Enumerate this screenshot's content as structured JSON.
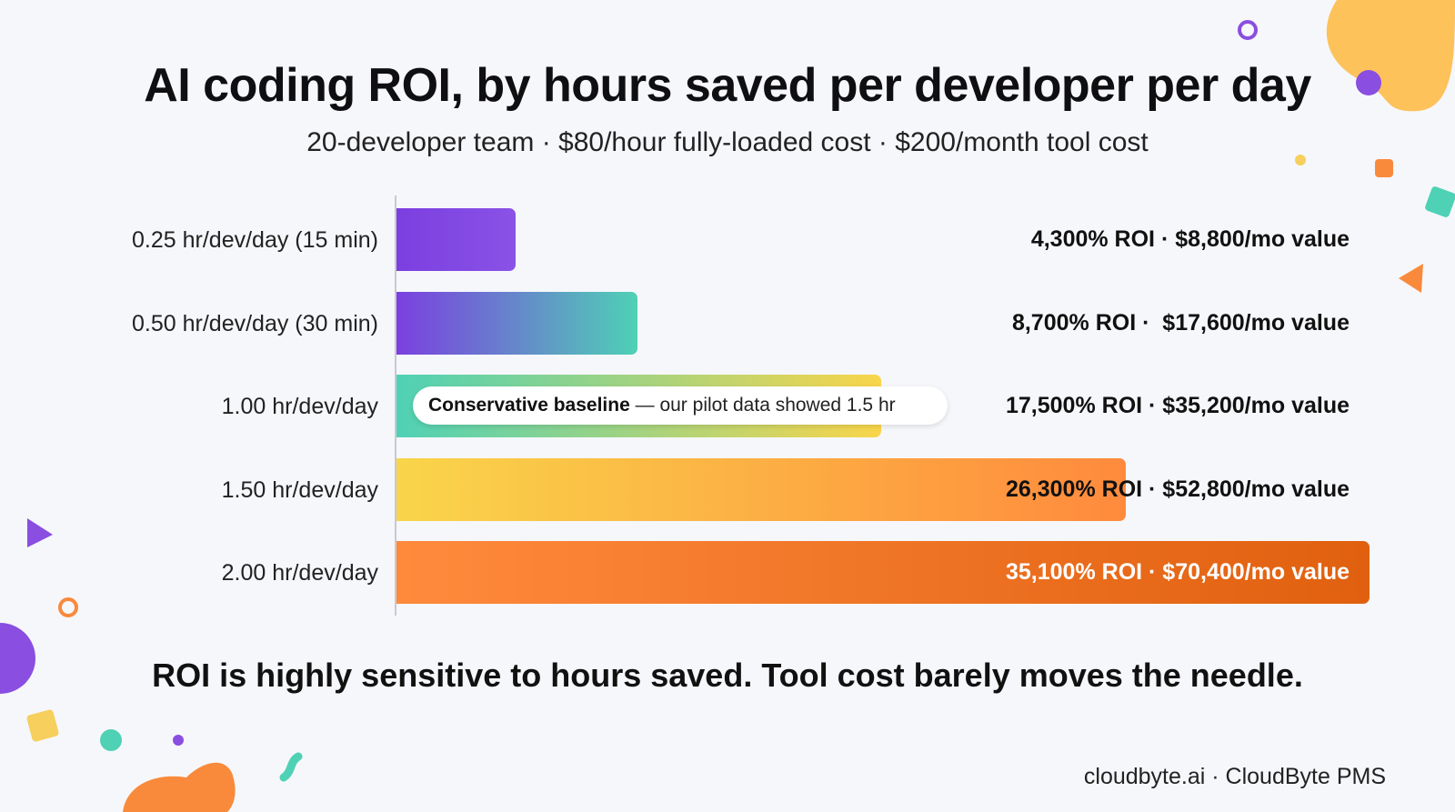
{
  "header": {
    "title": "AI coding ROI, by hours saved per developer per day",
    "subtitle": "20-developer team · $80/hour fully-loaded cost · $200/month tool cost"
  },
  "chart_data": {
    "type": "bar",
    "orientation": "horizontal",
    "title": "AI coding ROI, by hours saved per developer per day",
    "categories": [
      "0.25 hr/dev/day (15 min)",
      "0.50 hr/dev/day (30 min)",
      "1.00 hr/dev/day",
      "1.50 hr/dev/day",
      "2.00 hr/dev/day"
    ],
    "hours": [
      0.25,
      0.5,
      1.0,
      1.5,
      2.0
    ],
    "roi_percent": [
      4300,
      8700,
      17500,
      26300,
      35100
    ],
    "monthly_value_usd": [
      8800,
      17600,
      35200,
      52800,
      70400
    ],
    "data_labels": [
      "4,300% ROI · $8,800/mo value",
      "8,700% ROI ·  $17,600/mo value",
      "17,500% ROI · $35,200/mo value",
      "26,300% ROI · $52,800/mo value",
      "35,100% ROI · $70,400/mo value"
    ],
    "xlabel": "",
    "ylabel": "",
    "grid": false,
    "colors": [
      "#7b3fe0",
      "#4fd1b5",
      "#f9d54a",
      "#ff8a3d",
      "#e0600f"
    ],
    "annotation": {
      "category_index": 2,
      "bold": "Conservative baseline",
      "text": " — our pilot data showed 1.5 hr"
    }
  },
  "takeaway": "ROI is highly sensitive to hours saved. Tool cost barely moves the needle.",
  "footer": "cloudbyte.ai · CloudByte PMS"
}
